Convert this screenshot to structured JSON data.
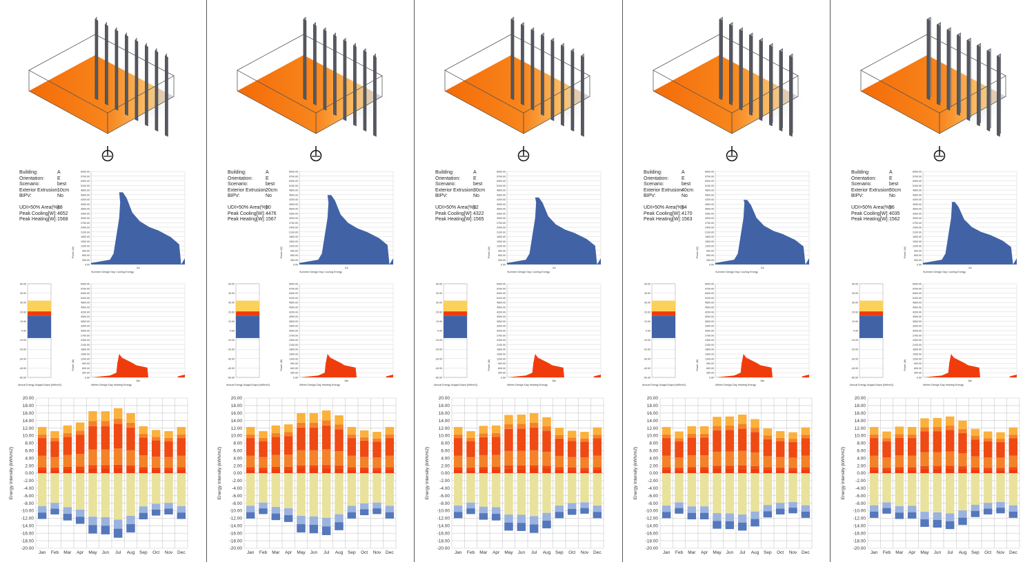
{
  "info_labels": {
    "building": "Building:",
    "orientation": "Orientation:",
    "scenario": "Scenario:",
    "extrusion": "Exterior Extrusion:",
    "bipv": "BIPV:",
    "udi": "UDI>50% Area(%):",
    "peak_cooling": "Peak Cooling[W]:",
    "peak_heating": "Peak Heating[W]:"
  },
  "cooling_chart": {
    "title": "Summer Design Day Cooling Energy",
    "ylabel": "Power (W)",
    "xlabel": "Jul",
    "ticks": [
      "6000.00",
      "5700.00",
      "5400.00",
      "5100.00",
      "4800.00",
      "4500.00",
      "4200.00",
      "3900.00",
      "3600.00",
      "3300.00",
      "3000.00",
      "2700.00",
      "2400.00",
      "2100.00",
      "1800.00",
      "1500.00",
      "1200.00",
      "900.00",
      "600.00",
      "300.00",
      "0.00"
    ]
  },
  "heating_chart": {
    "title": "Winter Design Day Heating Energy",
    "ylabel": "Power (W)",
    "xlabel": "Jan",
    "ticks": [
      "6000.00",
      "5700.00",
      "5400.00",
      "5100.00",
      "4800.00",
      "4500.00",
      "4200.00",
      "3900.00",
      "3600.00",
      "3300.00",
      "3000.00",
      "2700.00",
      "2400.00",
      "2100.00",
      "1800.00",
      "1500.00",
      "1200.00",
      "900.00",
      "600.00",
      "300.00",
      "0.00"
    ]
  },
  "annual_chart": {
    "title": "Annual Energy Usage/Output (kWh/m2)",
    "ticks": [
      "50.00",
      "40.00",
      "30.00",
      "20.00",
      "10.00",
      "0.00",
      "-10.00",
      "-20.00",
      "-30.00",
      "-40.00",
      "-50.00"
    ]
  },
  "monthly_chart": {
    "ylabel": "Energy Intensity (kWh/m2)",
    "ticks": [
      "20.00",
      "18.00",
      "16.00",
      "14.00",
      "12.00",
      "10.00",
      "8.00",
      "6.00",
      "4.00",
      "2.00",
      "0.00",
      "-2.00",
      "-4.00",
      "-6.00",
      "-8.00",
      "-10.00",
      "-12.00",
      "-14.00",
      "-16.00",
      "-18.00",
      "-20.00"
    ],
    "months": [
      "Jan",
      "Feb",
      "Mar",
      "Apr",
      "May",
      "Jun",
      "Jul",
      "Aug",
      "Sep",
      "Oct",
      "Nov",
      "Dec"
    ]
  },
  "colors": {
    "facade": "#8a8e96",
    "floor_orange": "#f77a12",
    "cooling": "#4163a6",
    "heating": "#f03c0c",
    "pos_light": "#fbb13c",
    "pos_orange": "#f48228",
    "pos_red": "#ef4a14",
    "pos_top": "#fcd159",
    "neg_pale": "#e9e29c",
    "neg_lightblue": "#9bb3df",
    "neg_blue": "#5577bb"
  },
  "chart_data": [
    {
      "type": "bar",
      "panel": 1,
      "info": {
        "building": "A",
        "orientation": "E",
        "scenario": "best",
        "extrusion": "10cm",
        "bipv": "No",
        "udi": "88",
        "peak_cooling": "4652",
        "peak_heating": "1568"
      },
      "cooling_profile_peak": 4652,
      "annual_stack": [
        12.0,
        4.5,
        8.0,
        -8.0
      ],
      "categories": [
        "Jan",
        "Feb",
        "Mar",
        "Apr",
        "May",
        "Jun",
        "Jul",
        "Aug",
        "Sep",
        "Oct",
        "Nov",
        "Dec"
      ],
      "positive_totals": [
        12.3,
        11.2,
        12.7,
        13.5,
        16.5,
        16.5,
        17.3,
        16.0,
        12.5,
        11.5,
        11.2,
        12.3
      ],
      "negative_totals": [
        -12.2,
        -11.0,
        -12.6,
        -13.5,
        -16.1,
        -16.3,
        -17.2,
        -15.8,
        -12.3,
        -11.3,
        -11.0,
        -12.2
      ]
    },
    {
      "type": "bar",
      "panel": 2,
      "info": {
        "building": "A",
        "orientation": "E",
        "scenario": "best",
        "extrusion": "20cm",
        "bipv": "No",
        "udi": "90",
        "peak_cooling": "4476",
        "peak_heating": "1567"
      },
      "cooling_profile_peak": 4476,
      "annual_stack": [
        12.0,
        4.5,
        8.0,
        -8.0
      ],
      "categories": [
        "Jan",
        "Feb",
        "Mar",
        "Apr",
        "May",
        "Jun",
        "Jul",
        "Aug",
        "Sep",
        "Oct",
        "Nov",
        "Dec"
      ],
      "positive_totals": [
        12.3,
        11.2,
        12.7,
        13.0,
        16.0,
        16.0,
        16.7,
        15.4,
        12.3,
        11.4,
        11.0,
        12.3
      ],
      "negative_totals": [
        -12.1,
        -10.9,
        -12.5,
        -13.0,
        -15.8,
        -16.0,
        -16.5,
        -15.2,
        -12.1,
        -11.2,
        -10.9,
        -12.1
      ]
    },
    {
      "type": "bar",
      "panel": 3,
      "info": {
        "building": "A",
        "orientation": "E",
        "scenario": "best",
        "extrusion": "30cm",
        "bipv": "No",
        "udi": "92",
        "peak_cooling": "4322",
        "peak_heating": "1565"
      },
      "cooling_profile_peak": 4322,
      "annual_stack": [
        12.0,
        4.5,
        8.0,
        -8.0
      ],
      "categories": [
        "Jan",
        "Feb",
        "Mar",
        "Apr",
        "May",
        "Jun",
        "Jul",
        "Aug",
        "Sep",
        "Oct",
        "Nov",
        "Dec"
      ],
      "positive_totals": [
        12.3,
        11.2,
        12.6,
        12.7,
        15.5,
        15.6,
        16.0,
        14.9,
        12.1,
        11.3,
        11.0,
        12.2
      ],
      "negative_totals": [
        -12.0,
        -10.9,
        -12.4,
        -12.6,
        -15.3,
        -15.4,
        -15.9,
        -14.7,
        -12.0,
        -11.1,
        -10.8,
        -12.0
      ]
    },
    {
      "type": "bar",
      "panel": 4,
      "info": {
        "building": "A",
        "orientation": "E",
        "scenario": "best",
        "extrusion": "40cm",
        "bipv": "No",
        "udi": "94",
        "peak_cooling": "4170",
        "peak_heating": "1563"
      },
      "cooling_profile_peak": 4170,
      "annual_stack": [
        12.0,
        4.5,
        8.0,
        -8.0
      ],
      "categories": [
        "Jan",
        "Feb",
        "Mar",
        "Apr",
        "May",
        "Jun",
        "Jul",
        "Aug",
        "Sep",
        "Oct",
        "Nov",
        "Dec"
      ],
      "positive_totals": [
        12.3,
        11.1,
        12.5,
        12.5,
        15.0,
        15.1,
        15.6,
        14.4,
        11.9,
        11.2,
        10.9,
        12.2
      ],
      "negative_totals": [
        -12.0,
        -10.8,
        -12.3,
        -12.3,
        -14.8,
        -14.9,
        -15.3,
        -14.2,
        -11.8,
        -11.0,
        -10.7,
        -11.9
      ]
    },
    {
      "type": "bar",
      "panel": 5,
      "info": {
        "building": "A",
        "orientation": "E",
        "scenario": "best",
        "extrusion": "50cm",
        "bipv": "No",
        "udi": "96",
        "peak_cooling": "4035",
        "peak_heating": "1562"
      },
      "cooling_profile_peak": 4035,
      "annual_stack": [
        12.0,
        4.5,
        8.0,
        -8.0
      ],
      "categories": [
        "Jan",
        "Feb",
        "Mar",
        "Apr",
        "May",
        "Jun",
        "Jul",
        "Aug",
        "Sep",
        "Oct",
        "Nov",
        "Dec"
      ],
      "positive_totals": [
        12.3,
        11.1,
        12.4,
        12.3,
        14.6,
        14.7,
        15.1,
        14.0,
        11.8,
        11.1,
        10.9,
        12.2
      ],
      "negative_totals": [
        -11.9,
        -10.8,
        -12.2,
        -12.1,
        -14.3,
        -14.5,
        -14.9,
        -13.8,
        -11.7,
        -11.0,
        -10.7,
        -11.9
      ]
    }
  ]
}
